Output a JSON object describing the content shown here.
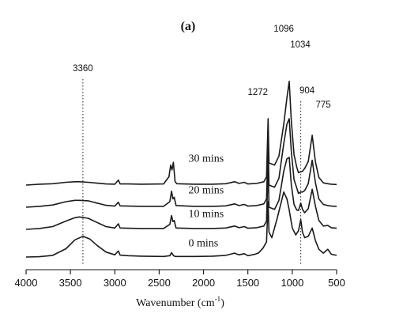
{
  "chart_data": {
    "type": "line",
    "panel_label": "(a)",
    "title": "",
    "xlabel": "Wavenumber (cm",
    "xlabel_superscript": "-1",
    "xlabel_suffix": ")",
    "ylabel": "",
    "x_reversed": true,
    "xlim": [
      4000,
      500
    ],
    "x_ticks": [
      4000,
      3500,
      3000,
      2500,
      2000,
      1500,
      1000,
      500
    ],
    "x_tick_labels": [
      "4000",
      "3500",
      "3000",
      "2500",
      "2000",
      "1500",
      "1000",
      "500"
    ],
    "grid": false,
    "legend": "none",
    "peak_labels": [
      {
        "text": "3360",
        "x": 3360,
        "guide": true
      },
      {
        "text": "1272",
        "x": 1272,
        "guide": false
      },
      {
        "text": "1096",
        "x": 1096,
        "guide": false
      },
      {
        "text": "1034",
        "x": 1034,
        "guide": false
      },
      {
        "text": "904",
        "x": 904,
        "guide": true
      },
      {
        "text": "775",
        "x": 775,
        "guide": false
      }
    ],
    "series": [
      {
        "name": "0 mins",
        "offset": 0,
        "points": [
          [
            4000,
            0.0
          ],
          [
            3850,
            0.01
          ],
          [
            3700,
            0.06
          ],
          [
            3550,
            0.3
          ],
          [
            3450,
            0.62
          ],
          [
            3360,
            0.75
          ],
          [
            3280,
            0.65
          ],
          [
            3200,
            0.42
          ],
          [
            3100,
            0.18
          ],
          [
            3000,
            0.08
          ],
          [
            2960,
            0.22
          ],
          [
            2940,
            0.07
          ],
          [
            2850,
            0.05
          ],
          [
            2700,
            0.03
          ],
          [
            2450,
            0.02
          ],
          [
            2380,
            0.05
          ],
          [
            2360,
            0.16
          ],
          [
            2340,
            0.06
          ],
          [
            2320,
            0.02
          ],
          [
            2100,
            0.02
          ],
          [
            1900,
            0.03
          ],
          [
            1750,
            0.06
          ],
          [
            1650,
            0.14
          ],
          [
            1600,
            0.08
          ],
          [
            1540,
            0.12
          ],
          [
            1500,
            0.05
          ],
          [
            1420,
            0.1
          ],
          [
            1380,
            0.15
          ],
          [
            1330,
            0.32
          ],
          [
            1290,
            0.55
          ],
          [
            1272,
            2.0
          ],
          [
            1262,
            0.9
          ],
          [
            1230,
            0.7
          ],
          [
            1170,
            1.4
          ],
          [
            1096,
            2.35
          ],
          [
            1060,
            2.1
          ],
          [
            1034,
            1.7
          ],
          [
            1000,
            1.05
          ],
          [
            960,
            0.8
          ],
          [
            930,
            0.95
          ],
          [
            904,
            1.35
          ],
          [
            885,
            0.9
          ],
          [
            860,
            0.7
          ],
          [
            820,
            0.75
          ],
          [
            775,
            1.05
          ],
          [
            740,
            0.6
          ],
          [
            700,
            0.28
          ],
          [
            650,
            0.14
          ],
          [
            600,
            0.28
          ],
          [
            560,
            0.1
          ],
          [
            500,
            0.06
          ]
        ]
      },
      {
        "name": "10 mins",
        "offset": 1.0,
        "points": [
          [
            4000,
            0.0
          ],
          [
            3850,
            0.03
          ],
          [
            3700,
            0.1
          ],
          [
            3550,
            0.3
          ],
          [
            3450,
            0.42
          ],
          [
            3400,
            0.45
          ],
          [
            3300,
            0.4
          ],
          [
            3200,
            0.25
          ],
          [
            3100,
            0.1
          ],
          [
            3000,
            0.05
          ],
          [
            2960,
            0.2
          ],
          [
            2940,
            0.05
          ],
          [
            2850,
            0.04
          ],
          [
            2700,
            0.03
          ],
          [
            2450,
            0.03
          ],
          [
            2380,
            0.18
          ],
          [
            2360,
            0.5
          ],
          [
            2345,
            0.28
          ],
          [
            2330,
            0.32
          ],
          [
            2310,
            0.05
          ],
          [
            2100,
            0.03
          ],
          [
            1900,
            0.03
          ],
          [
            1750,
            0.05
          ],
          [
            1650,
            0.12
          ],
          [
            1600,
            0.06
          ],
          [
            1540,
            0.1
          ],
          [
            1500,
            0.04
          ],
          [
            1400,
            0.06
          ],
          [
            1320,
            0.12
          ],
          [
            1290,
            0.3
          ],
          [
            1272,
            2.35
          ],
          [
            1262,
            0.8
          ],
          [
            1200,
            0.72
          ],
          [
            1150,
            1.05
          ],
          [
            1096,
            2.1
          ],
          [
            1060,
            2.55
          ],
          [
            1034,
            2.6
          ],
          [
            1010,
            1.6
          ],
          [
            980,
            0.9
          ],
          [
            950,
            0.7
          ],
          [
            930,
            0.68
          ],
          [
            904,
            0.95
          ],
          [
            885,
            0.72
          ],
          [
            860,
            0.6
          ],
          [
            820,
            0.75
          ],
          [
            775,
            1.45
          ],
          [
            740,
            0.85
          ],
          [
            700,
            0.32
          ],
          [
            650,
            0.12
          ],
          [
            600,
            0.14
          ],
          [
            560,
            0.06
          ],
          [
            500,
            0.04
          ]
        ]
      },
      {
        "name": "20 mins",
        "offset": 1.8,
        "points": [
          [
            4000,
            0.0
          ],
          [
            3850,
            0.03
          ],
          [
            3700,
            0.08
          ],
          [
            3550,
            0.2
          ],
          [
            3450,
            0.25
          ],
          [
            3400,
            0.25
          ],
          [
            3300,
            0.23
          ],
          [
            3200,
            0.15
          ],
          [
            3100,
            0.07
          ],
          [
            3000,
            0.04
          ],
          [
            2960,
            0.18
          ],
          [
            2940,
            0.05
          ],
          [
            2850,
            0.04
          ],
          [
            2700,
            0.03
          ],
          [
            2450,
            0.03
          ],
          [
            2380,
            0.2
          ],
          [
            2360,
            0.58
          ],
          [
            2345,
            0.3
          ],
          [
            2330,
            0.36
          ],
          [
            2310,
            0.06
          ],
          [
            2100,
            0.03
          ],
          [
            1900,
            0.03
          ],
          [
            1750,
            0.05
          ],
          [
            1650,
            0.12
          ],
          [
            1600,
            0.06
          ],
          [
            1540,
            0.1
          ],
          [
            1500,
            0.04
          ],
          [
            1400,
            0.06
          ],
          [
            1320,
            0.12
          ],
          [
            1290,
            0.3
          ],
          [
            1272,
            2.45
          ],
          [
            1262,
            0.8
          ],
          [
            1200,
            0.72
          ],
          [
            1150,
            1.05
          ],
          [
            1096,
            2.3
          ],
          [
            1060,
            3.0
          ],
          [
            1034,
            3.2
          ],
          [
            1010,
            2.0
          ],
          [
            980,
            1.0
          ],
          [
            950,
            0.7
          ],
          [
            930,
            0.5
          ],
          [
            904,
            0.55
          ],
          [
            885,
            0.55
          ],
          [
            860,
            0.6
          ],
          [
            820,
            0.85
          ],
          [
            775,
            1.7
          ],
          [
            740,
            0.9
          ],
          [
            700,
            0.3
          ],
          [
            650,
            0.1
          ],
          [
            600,
            0.06
          ],
          [
            560,
            0.04
          ],
          [
            500,
            0.03
          ]
        ]
      },
      {
        "name": "30 mins",
        "offset": 2.6,
        "points": [
          [
            4000,
            0.0
          ],
          [
            3850,
            0.03
          ],
          [
            3700,
            0.05
          ],
          [
            3550,
            0.1
          ],
          [
            3450,
            0.12
          ],
          [
            3400,
            0.12
          ],
          [
            3300,
            0.1
          ],
          [
            3200,
            0.07
          ],
          [
            3100,
            0.04
          ],
          [
            3000,
            0.03
          ],
          [
            2960,
            0.18
          ],
          [
            2940,
            0.04
          ],
          [
            2850,
            0.04
          ],
          [
            2700,
            0.03
          ],
          [
            2450,
            0.04
          ],
          [
            2390,
            0.3
          ],
          [
            2370,
            0.72
          ],
          [
            2355,
            0.55
          ],
          [
            2340,
            0.82
          ],
          [
            2320,
            0.12
          ],
          [
            2300,
            0.05
          ],
          [
            2100,
            0.03
          ],
          [
            1900,
            0.03
          ],
          [
            1750,
            0.05
          ],
          [
            1650,
            0.12
          ],
          [
            1600,
            0.06
          ],
          [
            1540,
            0.1
          ],
          [
            1500,
            0.04
          ],
          [
            1400,
            0.06
          ],
          [
            1320,
            0.12
          ],
          [
            1290,
            0.3
          ],
          [
            1272,
            2.4
          ],
          [
            1262,
            0.8
          ],
          [
            1200,
            0.72
          ],
          [
            1150,
            1.05
          ],
          [
            1096,
            2.2
          ],
          [
            1060,
            3.15
          ],
          [
            1034,
            3.75
          ],
          [
            1010,
            2.3
          ],
          [
            980,
            1.1
          ],
          [
            950,
            0.65
          ],
          [
            930,
            0.45
          ],
          [
            904,
            0.48
          ],
          [
            885,
            0.5
          ],
          [
            860,
            0.6
          ],
          [
            820,
            0.85
          ],
          [
            775,
            1.8
          ],
          [
            740,
            0.85
          ],
          [
            700,
            0.28
          ],
          [
            650,
            0.08
          ],
          [
            600,
            0.05
          ],
          [
            560,
            0.03
          ],
          [
            500,
            0.02
          ]
        ]
      }
    ]
  }
}
